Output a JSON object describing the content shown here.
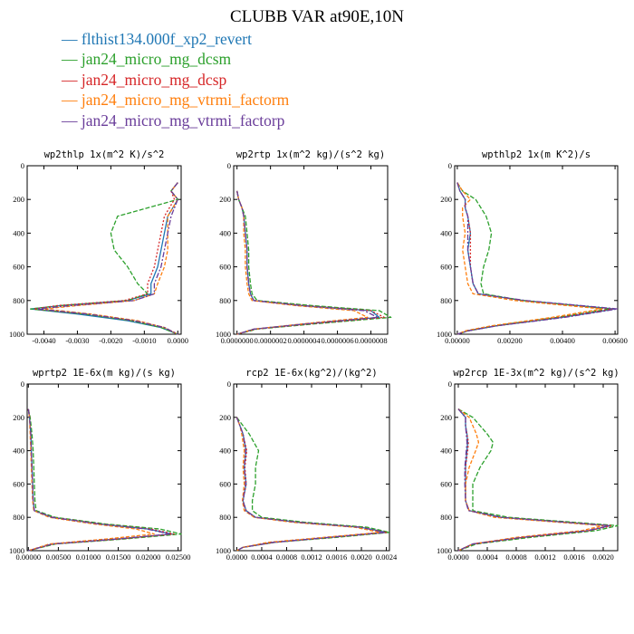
{
  "title": "CLUBB VAR at90E,10N",
  "legend": [
    {
      "label": "flthist134.000f_xp2_revert",
      "color": "#1f77b4"
    },
    {
      "label": "jan24_micro_mg_dcsm",
      "color": "#2ca02c"
    },
    {
      "label": "jan24_micro_mg_dcsp",
      "color": "#d62728"
    },
    {
      "label": "jan24_micro_mg_vtrmi_factorm",
      "color": "#ff7f0e"
    },
    {
      "label": "jan24_micro_mg_vtrmi_factorp",
      "color": "#6a3d9a"
    }
  ],
  "chart_data": [
    {
      "type": "line",
      "title": "wp2thlp   1x(m^2 K)/s^2",
      "ylim": [
        1000,
        0
      ],
      "y_ticks": [
        "0",
        "200",
        "400",
        "600",
        "800",
        "1000"
      ],
      "xlim": [
        -0.0045,
        0.0001
      ],
      "x_ticks": [
        -0.004,
        -0.003,
        -0.002,
        -0.001,
        0.0
      ],
      "x_tick_labels": [
        "-0.0040",
        "-0.0030",
        "-0.0020",
        "-0.0010",
        "0.0000"
      ],
      "y": [
        100,
        150,
        200,
        300,
        400,
        500,
        600,
        700,
        760,
        800,
        830,
        850,
        880,
        920,
        960,
        1000
      ],
      "series": [
        {
          "values": [
            0.0,
            -0.0002,
            0.0,
            -0.0003,
            -0.0004,
            -0.0005,
            -0.0006,
            -0.0008,
            -0.0008,
            -0.0015,
            -0.0035,
            -0.0044,
            -0.003,
            -0.0015,
            -0.0005,
            0.0
          ]
        },
        {
          "values": [
            0.0,
            -0.0002,
            0.0,
            -0.0018,
            -0.002,
            -0.0019,
            -0.0015,
            -0.0012,
            -0.0009,
            -0.0015,
            -0.0035,
            -0.0044,
            -0.0028,
            -0.0014,
            -0.0005,
            0.0
          ]
        },
        {
          "values": [
            0.0,
            -0.0002,
            -0.0001,
            -0.0004,
            -0.0005,
            -0.0006,
            -0.0007,
            -0.0009,
            -0.0009,
            -0.0016,
            -0.0036,
            -0.0043,
            -0.0027,
            -0.0013,
            -0.0004,
            0.0
          ]
        },
        {
          "values": [
            0.0,
            -0.0002,
            0.0,
            -0.0003,
            -0.0003,
            -0.0003,
            -0.0004,
            -0.0006,
            -0.0007,
            -0.0013,
            -0.003,
            -0.004,
            -0.0026,
            -0.0012,
            -0.0004,
            0.0
          ]
        },
        {
          "values": [
            0.0,
            -0.0002,
            0.0,
            -0.0002,
            -0.0003,
            -0.0004,
            -0.0005,
            -0.0007,
            -0.0007,
            -0.0013,
            -0.0032,
            -0.0042,
            -0.0027,
            -0.0013,
            -0.0004,
            0.0
          ]
        }
      ]
    },
    {
      "type": "line",
      "title": "wp2rtp   1x(m^2 kg)/(s^2 kg)",
      "ylim": [
        1000,
        0
      ],
      "y_ticks": [
        "0",
        "200",
        "400",
        "600",
        "800",
        "1000"
      ],
      "xlim": [
        -2e-08,
        9e-07
      ],
      "x_ticks": [
        0.0,
        2e-07,
        4e-07,
        6e-07,
        8e-07
      ],
      "x_tick_labels": [
        "0.0000000",
        "0.0000002",
        "0.0000004",
        "0.0000006",
        "0.0000008"
      ],
      "y": [
        150,
        200,
        250,
        300,
        400,
        500,
        600,
        700,
        760,
        800,
        830,
        860,
        900,
        940,
        970,
        1000
      ],
      "series": [
        {
          "values": [
            0.0,
            1e-08,
            3e-08,
            4e-08,
            5e-08,
            6e-08,
            6e-08,
            7e-08,
            8e-08,
            1e-07,
            4e-07,
            8e-07,
            8.5e-07,
            4e-07,
            1e-07,
            0.0
          ]
        },
        {
          "values": [
            0.0,
            1e-08,
            3e-08,
            5e-08,
            6e-08,
            7e-08,
            7e-08,
            8e-08,
            9e-08,
            1.2e-07,
            4.5e-07,
            8.5e-07,
            9.2e-07,
            4.5e-07,
            1.2e-07,
            0.0
          ]
        },
        {
          "values": [
            0.0,
            1e-08,
            3e-08,
            4e-08,
            5e-08,
            6e-08,
            6e-08,
            7e-08,
            8e-08,
            1e-07,
            4e-07,
            8e-07,
            8.8e-07,
            4.2e-07,
            1.1e-07,
            0.0
          ]
        },
        {
          "values": [
            0.0,
            1e-08,
            3e-08,
            4e-08,
            4e-08,
            5e-08,
            5e-08,
            6e-08,
            7e-08,
            9e-08,
            3.5e-07,
            7e-07,
            7.8e-07,
            3.8e-07,
            1e-07,
            0.0
          ]
        },
        {
          "values": [
            0.0,
            1e-08,
            3e-08,
            4e-08,
            5e-08,
            6e-08,
            6e-08,
            7e-08,
            8e-08,
            1e-07,
            3.8e-07,
            7.6e-07,
            8.4e-07,
            4e-07,
            1e-07,
            0.0
          ]
        }
      ]
    },
    {
      "type": "line",
      "title": "wpthlp2   1x(m K^2)/s",
      "ylim": [
        1000,
        0
      ],
      "y_ticks": [
        "0",
        "200",
        "400",
        "600",
        "800",
        "1000"
      ],
      "xlim": [
        -0.0001,
        0.0061
      ],
      "x_ticks": [
        0.0,
        0.002,
        0.004,
        0.006
      ],
      "x_tick_labels": [
        "0.00000",
        "0.00200",
        "0.00400",
        "0.00600"
      ],
      "y": [
        100,
        150,
        200,
        250,
        300,
        400,
        500,
        600,
        700,
        760,
        800,
        850,
        900,
        950,
        980,
        1000
      ],
      "series": [
        {
          "values": [
            0.0,
            0.0001,
            0.0003,
            0.0003,
            0.0004,
            0.0005,
            0.0004,
            0.0005,
            0.0006,
            0.0008,
            0.0025,
            0.006,
            0.004,
            0.0015,
            0.0004,
            0.0
          ]
        },
        {
          "values": [
            0.0,
            0.0002,
            0.0007,
            0.0009,
            0.0011,
            0.0013,
            0.0012,
            0.001,
            0.0009,
            0.001,
            0.0025,
            0.0058,
            0.0038,
            0.0014,
            0.0004,
            0.0
          ]
        },
        {
          "values": [
            0.0,
            0.0001,
            0.0003,
            0.0003,
            0.0004,
            0.0005,
            0.0005,
            0.0005,
            0.0006,
            0.0008,
            0.0025,
            0.0059,
            0.0039,
            0.0015,
            0.0004,
            0.0
          ]
        },
        {
          "values": [
            0.0,
            0.0002,
            0.0005,
            0.0002,
            0.0002,
            0.0003,
            0.0002,
            0.0003,
            0.0004,
            0.0006,
            0.0022,
            0.0055,
            0.0036,
            0.0013,
            0.0003,
            0.0
          ]
        },
        {
          "values": [
            0.0,
            0.0001,
            0.0003,
            0.0003,
            0.0004,
            0.0004,
            0.0004,
            0.0005,
            0.0006,
            0.0008,
            0.0026,
            0.0061,
            0.0041,
            0.0015,
            0.0004,
            0.0
          ]
        }
      ]
    },
    {
      "type": "line",
      "title": "wprtp2   1E-6x(m kg)/(s kg)",
      "ylim": [
        1000,
        0
      ],
      "y_ticks": [
        "0",
        "200",
        "400",
        "600",
        "800",
        "1000"
      ],
      "xlim": [
        -0.0002,
        0.0255
      ],
      "x_ticks": [
        0.0,
        0.005,
        0.01,
        0.015,
        0.02,
        0.025
      ],
      "x_tick_labels": [
        "0.00000",
        "0.00500",
        "0.01000",
        "0.01500",
        "0.02000",
        "0.02500"
      ],
      "y": [
        150,
        200,
        300,
        400,
        500,
        600,
        700,
        760,
        800,
        840,
        870,
        900,
        930,
        960,
        1000
      ],
      "series": [
        {
          "values": [
            0.0,
            0.0002,
            0.0004,
            0.0005,
            0.0006,
            0.0007,
            0.0008,
            0.001,
            0.004,
            0.012,
            0.02,
            0.024,
            0.015,
            0.004,
            0.0
          ]
        },
        {
          "values": [
            0.0,
            0.0003,
            0.0006,
            0.0008,
            0.0009,
            0.001,
            0.0011,
            0.0013,
            0.0045,
            0.013,
            0.022,
            0.0255,
            0.016,
            0.0045,
            0.0
          ]
        },
        {
          "values": [
            0.0,
            0.0002,
            0.0004,
            0.0005,
            0.0006,
            0.0007,
            0.0008,
            0.001,
            0.0041,
            0.0122,
            0.0205,
            0.0243,
            0.0152,
            0.0041,
            0.0
          ]
        },
        {
          "values": [
            0.0,
            0.0002,
            0.0003,
            0.0004,
            0.0005,
            0.0006,
            0.0007,
            0.0009,
            0.0035,
            0.011,
            0.018,
            0.021,
            0.013,
            0.0035,
            0.0
          ]
        },
        {
          "values": [
            0.0,
            0.0002,
            0.0004,
            0.0005,
            0.0006,
            0.0007,
            0.0008,
            0.001,
            0.0039,
            0.0118,
            0.0198,
            0.0236,
            0.0148,
            0.004,
            0.0
          ]
        }
      ]
    },
    {
      "type": "line",
      "title": "rcp2   1E-6x(kg^2)/(kg^2)",
      "ylim": [
        1000,
        0
      ],
      "y_ticks": [
        "0",
        "200",
        "400",
        "600",
        "800",
        "1000"
      ],
      "xlim": [
        -5e-05,
        0.00245
      ],
      "x_ticks": [
        0.0,
        0.0004,
        0.0008,
        0.0012,
        0.0016,
        0.002,
        0.0024
      ],
      "x_tick_labels": [
        "0.0000",
        "0.0004",
        "0.0008",
        "0.0012",
        "0.0016",
        "0.0020",
        "0.0024"
      ],
      "y": [
        200,
        250,
        300,
        400,
        500,
        600,
        700,
        760,
        800,
        830,
        860,
        890,
        920,
        950,
        980,
        1000
      ],
      "series": [
        {
          "values": [
            0.0,
            5e-05,
            0.0001,
            0.00015,
            0.00012,
            0.00015,
            0.0001,
            0.00015,
            0.0003,
            0.001,
            0.002,
            0.0024,
            0.0015,
            0.0006,
            0.0001,
            0.0
          ]
        },
        {
          "values": [
            0.0,
            0.0001,
            0.0002,
            0.00035,
            0.0003,
            0.0003,
            0.00025,
            0.00025,
            0.0004,
            0.0011,
            0.0021,
            0.00245,
            0.0016,
            0.0006,
            0.0001,
            0.0
          ]
        },
        {
          "values": [
            0.0,
            5e-05,
            0.0001,
            0.00016,
            0.00013,
            0.00015,
            0.0001,
            0.00015,
            0.0003,
            0.001,
            0.002,
            0.0024,
            0.0015,
            0.0006,
            0.0001,
            0.0
          ]
        },
        {
          "values": [
            0.0,
            5e-05,
            8e-05,
            0.00012,
            0.0001,
            0.00012,
            9e-05,
            0.00012,
            0.00028,
            0.0009,
            0.0019,
            0.0023,
            0.0014,
            0.0005,
            0.0001,
            0.0
          ]
        },
        {
          "values": [
            0.0,
            5e-05,
            0.0001,
            0.00014,
            0.00012,
            0.00014,
            0.0001,
            0.00014,
            0.0003,
            0.00098,
            0.00198,
            0.00238,
            0.00148,
            0.00058,
            0.0001,
            0.0
          ]
        }
      ]
    },
    {
      "type": "line",
      "title": "wp2rcp   1E-3x(m^2 kg)/(s^2 kg)",
      "ylim": [
        1000,
        0
      ],
      "y_ticks": [
        "0",
        "200",
        "400",
        "600",
        "800",
        "1000"
      ],
      "xlim": [
        -5e-05,
        0.0022
      ],
      "x_ticks": [
        0.0,
        0.0004,
        0.0008,
        0.0012,
        0.0016,
        0.002
      ],
      "x_tick_labels": [
        "0.0000",
        "0.0004",
        "0.0008",
        "0.0012",
        "0.0016",
        "0.0020"
      ],
      "y": [
        150,
        200,
        250,
        300,
        350,
        400,
        500,
        600,
        700,
        760,
        800,
        830,
        850,
        880,
        920,
        960,
        1000
      ],
      "series": [
        {
          "values": [
            0.0,
            0.0001,
            0.0001,
            0.00012,
            0.00013,
            0.00012,
            0.0001,
            0.0001,
            0.0001,
            0.00015,
            0.0006,
            0.0015,
            0.0021,
            0.0018,
            0.0009,
            0.0002,
            0.0
          ]
        },
        {
          "values": [
            0.0,
            0.0002,
            0.0003,
            0.0004,
            0.00048,
            0.00045,
            0.0003,
            0.0002,
            0.0002,
            0.0002,
            0.0007,
            0.0016,
            0.0022,
            0.0019,
            0.001,
            0.00025,
            0.0
          ]
        },
        {
          "values": [
            0.0,
            0.0001,
            0.0001,
            0.00012,
            0.00014,
            0.00013,
            0.0001,
            0.0001,
            0.0001,
            0.00015,
            0.0006,
            0.0015,
            0.00212,
            0.0018,
            0.0009,
            0.0002,
            0.0
          ]
        },
        {
          "values": [
            0.0,
            0.00015,
            0.0002,
            0.00025,
            0.00028,
            0.00024,
            0.00015,
            0.0001,
            0.0001,
            0.00015,
            0.0005,
            0.0014,
            0.002,
            0.0017,
            0.0008,
            0.0002,
            0.0
          ]
        },
        {
          "values": [
            0.0,
            0.0001,
            0.0001,
            0.00011,
            0.00012,
            0.00011,
            9e-05,
            9e-05,
            0.0001,
            0.00014,
            0.00058,
            0.00148,
            0.00208,
            0.00178,
            0.00088,
            0.0002,
            0.0
          ]
        }
      ]
    }
  ]
}
